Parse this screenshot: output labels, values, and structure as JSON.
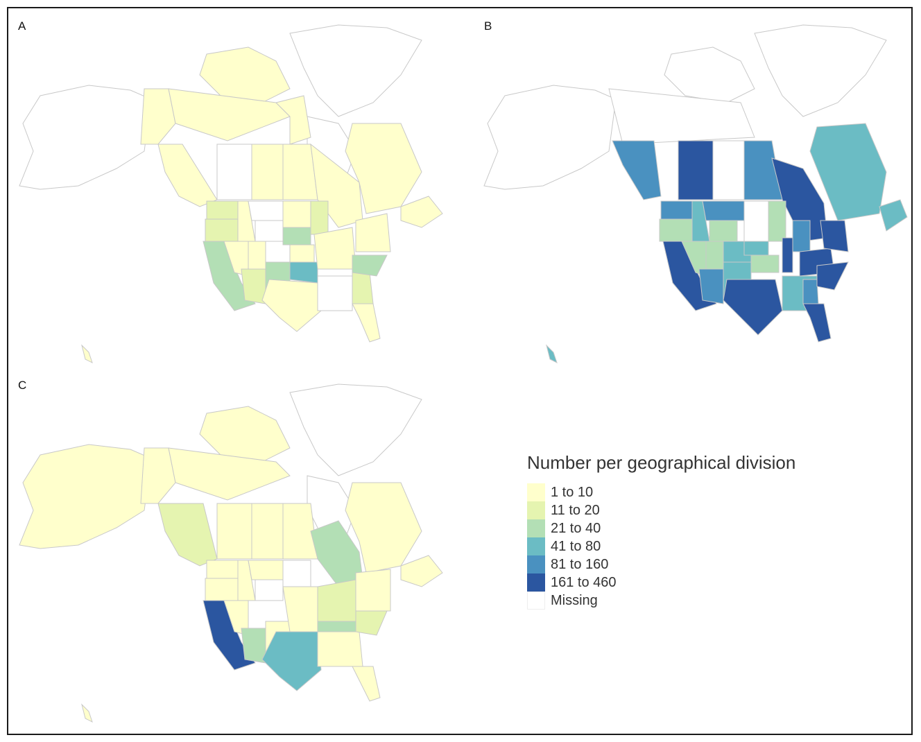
{
  "panels": [
    {
      "label": "A"
    },
    {
      "label": "B"
    },
    {
      "label": "C"
    }
  ],
  "legend": {
    "title": "Number per geographical division",
    "items": [
      {
        "label": "1 to 10",
        "color": "#ffffcc"
      },
      {
        "label": "11 to 20",
        "color": "#e5f4b0"
      },
      {
        "label": "21 to 40",
        "color": "#b3dfb5"
      },
      {
        "label": "41 to 80",
        "color": "#6bbcc4"
      },
      {
        "label": "81 to 160",
        "color": "#4a91c0"
      },
      {
        "label": "161 to 460",
        "color": "#2b56a0"
      },
      {
        "label": "Missing",
        "color": "#ffffff"
      }
    ]
  },
  "colors": {
    "outline": "#c8c8c8",
    "land_low": "#ffffcc",
    "missing": "#ffffff"
  }
}
